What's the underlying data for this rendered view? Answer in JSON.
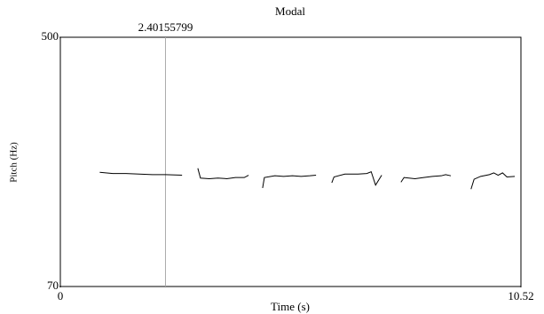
{
  "chart_data": {
    "type": "line",
    "title": "Modal",
    "x_label": "Time (s)",
    "y_label": "Pitch (Hz)",
    "xlim": [
      0,
      10.52
    ],
    "xticks": [
      0,
      10.52
    ],
    "ylim": [
      70,
      500
    ],
    "yticks": [
      70,
      500
    ],
    "cursor": 2.40155799,
    "color": "#000000",
    "cursor_color": "#aaaaaa",
    "x": [
      0.9,
      1.2,
      1.5,
      1.8,
      2.1,
      2.4,
      2.78,
      2.9,
      3.14,
      3.2,
      3.4,
      3.6,
      3.8,
      4.0,
      4.2,
      4.3,
      4.45,
      4.62,
      4.66,
      4.9,
      5.1,
      5.3,
      5.5,
      5.7,
      5.84,
      6.0,
      6.2,
      6.25,
      6.5,
      6.8,
      7.0,
      7.1,
      7.2,
      7.34,
      7.55,
      7.78,
      7.85,
      8.1,
      8.3,
      8.5,
      8.7,
      8.8,
      8.92,
      9.15,
      9.38,
      9.45,
      9.6,
      9.8,
      9.9,
      10.0,
      10.1,
      10.2,
      10.38
    ],
    "values": [
      267,
      265,
      265,
      264,
      263,
      263,
      262,
      null,
      274,
      257,
      256,
      257,
      256,
      258,
      258,
      262,
      null,
      240,
      258,
      261,
      260,
      261,
      260,
      261,
      262,
      null,
      249,
      259,
      264,
      264,
      265,
      268,
      245,
      262,
      null,
      250,
      258,
      256,
      258,
      260,
      261,
      263,
      261,
      null,
      238,
      255,
      260,
      263,
      266,
      262,
      266,
      259,
      260
    ]
  }
}
